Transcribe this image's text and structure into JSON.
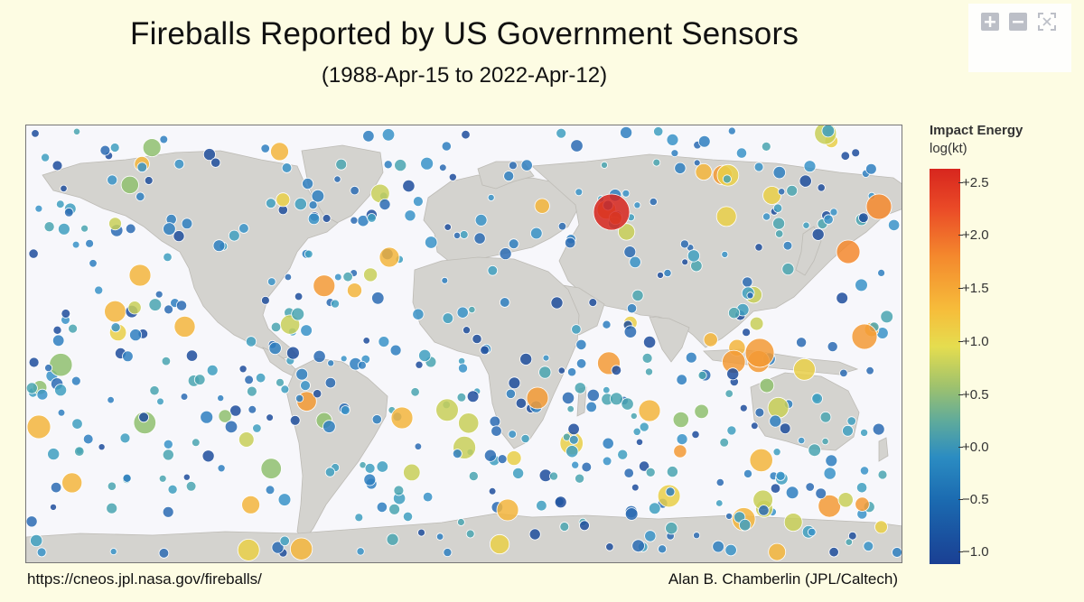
{
  "title": "Fireballs Reported by US Government Sensors",
  "subtitle": "(1988-Apr-15 to 2022-Apr-12)",
  "credits": {
    "left": "https://cneos.jpl.nasa.gov/fireballs/",
    "right": "Alan B. Chamberlin (JPL/Caltech)"
  },
  "toolbar": {
    "zoom_in_icon": "plus-icon",
    "zoom_out_icon": "minus-icon",
    "reset_icon": "autoscale-icon"
  },
  "legend": {
    "title": "Impact Energy",
    "subtitle": "log(kt)",
    "ticks": [
      "+2.5",
      "+2.0",
      "+1.5",
      "+1.0",
      "+0.5",
      "+0.0",
      "−1.0"
    ],
    "extra_tick": "−0.5",
    "colors": {
      "high": "#d7261e",
      "mid_high": "#f4882d",
      "mid": "#e5dd4f",
      "mid_low": "#5eaa9c",
      "low": "#2b8cc2",
      "lowest": "#1a3f93"
    }
  },
  "map": {
    "land_color": "#d4d3cf",
    "ocean_color": "#f7f7fb",
    "border_color": "#b8b6b0"
  }
}
